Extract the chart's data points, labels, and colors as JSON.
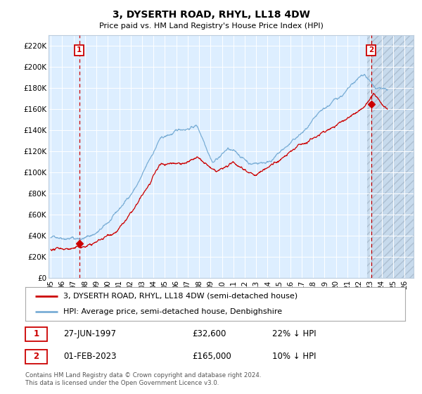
{
  "title": "3, DYSERTH ROAD, RHYL, LL18 4DW",
  "subtitle": "Price paid vs. HM Land Registry's House Price Index (HPI)",
  "ylabel_ticks": [
    "£0",
    "£20K",
    "£40K",
    "£60K",
    "£80K",
    "£100K",
    "£120K",
    "£140K",
    "£160K",
    "£180K",
    "£200K",
    "£220K"
  ],
  "ytick_vals": [
    0,
    20000,
    40000,
    60000,
    80000,
    100000,
    120000,
    140000,
    160000,
    180000,
    200000,
    220000
  ],
  "ylim": [
    0,
    230000
  ],
  "xlim_start": 1994.8,
  "xlim_end": 2026.8,
  "xticks": [
    1995,
    1996,
    1997,
    1998,
    1999,
    2000,
    2001,
    2002,
    2003,
    2004,
    2005,
    2006,
    2007,
    2008,
    2009,
    2010,
    2011,
    2012,
    2013,
    2014,
    2015,
    2016,
    2017,
    2018,
    2019,
    2020,
    2021,
    2022,
    2023,
    2024,
    2025,
    2026
  ],
  "hpi_color": "#7aaed6",
  "price_color": "#cc0000",
  "vline_color": "#cc0000",
  "plot_bg": "#ddeeff",
  "grid_color": "#ffffff",
  "marker1_date": 1997.49,
  "marker1_price": 32600,
  "marker1_label": "1",
  "marker2_date": 2023.08,
  "marker2_price": 165000,
  "marker2_label": "2",
  "legend_line1": "3, DYSERTH ROAD, RHYL, LL18 4DW (semi-detached house)",
  "legend_line2": "HPI: Average price, semi-detached house, Denbighshire",
  "footer": "Contains HM Land Registry data © Crown copyright and database right 2024.\nThis data is licensed under the Open Government Licence v3.0.",
  "table_row1_num": "1",
  "table_row1_date": "27-JUN-1997",
  "table_row1_price": "£32,600",
  "table_row1_hpi": "22% ↓ HPI",
  "table_row2_num": "2",
  "table_row2_date": "01-FEB-2023",
  "table_row2_price": "£165,000",
  "table_row2_hpi": "10% ↓ HPI",
  "hatch_start": 2022.7,
  "hatch_end": 2026.8
}
